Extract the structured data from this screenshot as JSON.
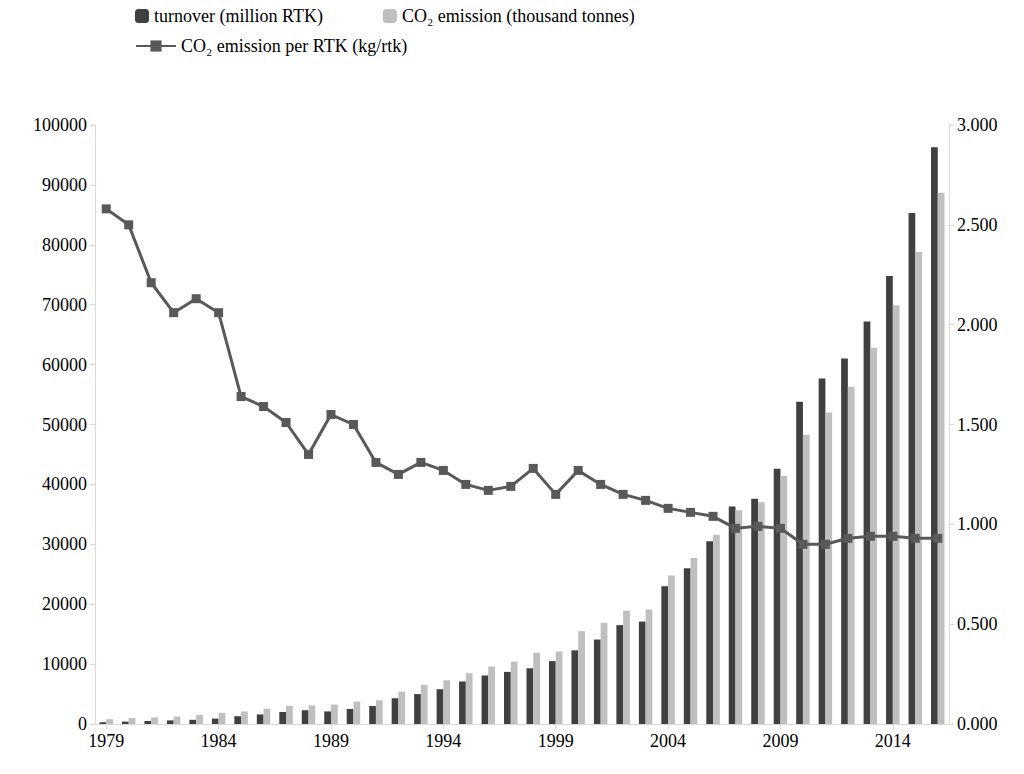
{
  "chart_data": {
    "type": "bar",
    "categories": [
      1979,
      null,
      null,
      null,
      null,
      1984,
      null,
      null,
      null,
      null,
      1989,
      null,
      null,
      null,
      null,
      1994,
      null,
      null,
      null,
      null,
      1999,
      null,
      null,
      null,
      null,
      2004,
      null,
      null,
      null,
      null,
      2009,
      null,
      null,
      null,
      null,
      2014,
      null,
      null
    ],
    "series": [
      {
        "name": "turnover (million RTK)",
        "type": "bar",
        "color": "#404040",
        "values": [
          300,
          400,
          500,
          600,
          700,
          900,
          1300,
          1600,
          2000,
          2300,
          2100,
          2500,
          3000,
          4300,
          5000,
          5800,
          7100,
          8100,
          8700,
          9300,
          10500,
          12300,
          14100,
          16500,
          17100,
          23000,
          26000,
          30500,
          36300,
          37600,
          42600,
          53800,
          57700,
          61000,
          67200,
          74800,
          85300,
          96300
        ]
      },
      {
        "name": "CO₂ emission (thousand tonnes)",
        "type": "bar",
        "color": "#bfbfbf",
        "values": [
          800,
          1000,
          1100,
          1250,
          1500,
          1850,
          2100,
          2550,
          3050,
          3100,
          3250,
          3750,
          3950,
          5400,
          6500,
          7300,
          8500,
          9600,
          10400,
          11900,
          12100,
          15500,
          16900,
          18900,
          19100,
          24800,
          27700,
          31600,
          35700,
          37000,
          41400,
          48300,
          52000,
          56300,
          62800,
          69900,
          78800,
          88700
        ]
      },
      {
        "name": "CO₂ emission per RTK (kg/rtk)",
        "type": "line",
        "color": "#595959",
        "axis": "y2",
        "marker": "square",
        "line_style": "solid",
        "values": [
          2.58,
          2.5,
          2.21,
          2.06,
          2.13,
          2.06,
          1.64,
          1.59,
          1.51,
          1.35,
          1.55,
          1.5,
          1.31,
          1.25,
          1.31,
          1.27,
          1.2,
          1.17,
          1.19,
          1.28,
          1.15,
          1.27,
          1.2,
          1.15,
          1.12,
          1.08,
          1.06,
          1.04,
          0.98,
          0.99,
          0.98,
          0.9,
          0.9,
          0.93,
          0.94,
          0.94,
          0.93,
          0.93
        ]
      }
    ],
    "ylim": [
      0,
      100000
    ],
    "yticks": [
      0,
      10000,
      20000,
      30000,
      40000,
      50000,
      60000,
      70000,
      80000,
      90000,
      100000
    ],
    "y2lim": [
      0,
      3
    ],
    "y2ticks": [
      {
        "value": 0,
        "label": "0.000"
      },
      {
        "value": 0.5,
        "label": "0.500"
      },
      {
        "value": 1,
        "label": "1.000"
      },
      {
        "value": 1.5,
        "label": "1.500"
      },
      {
        "value": 2,
        "label": "2.000"
      },
      {
        "value": 2.5,
        "label": "2.500"
      },
      {
        "value": 3,
        "label": "3.000"
      }
    ],
    "grid": false,
    "legend": "upper left"
  }
}
